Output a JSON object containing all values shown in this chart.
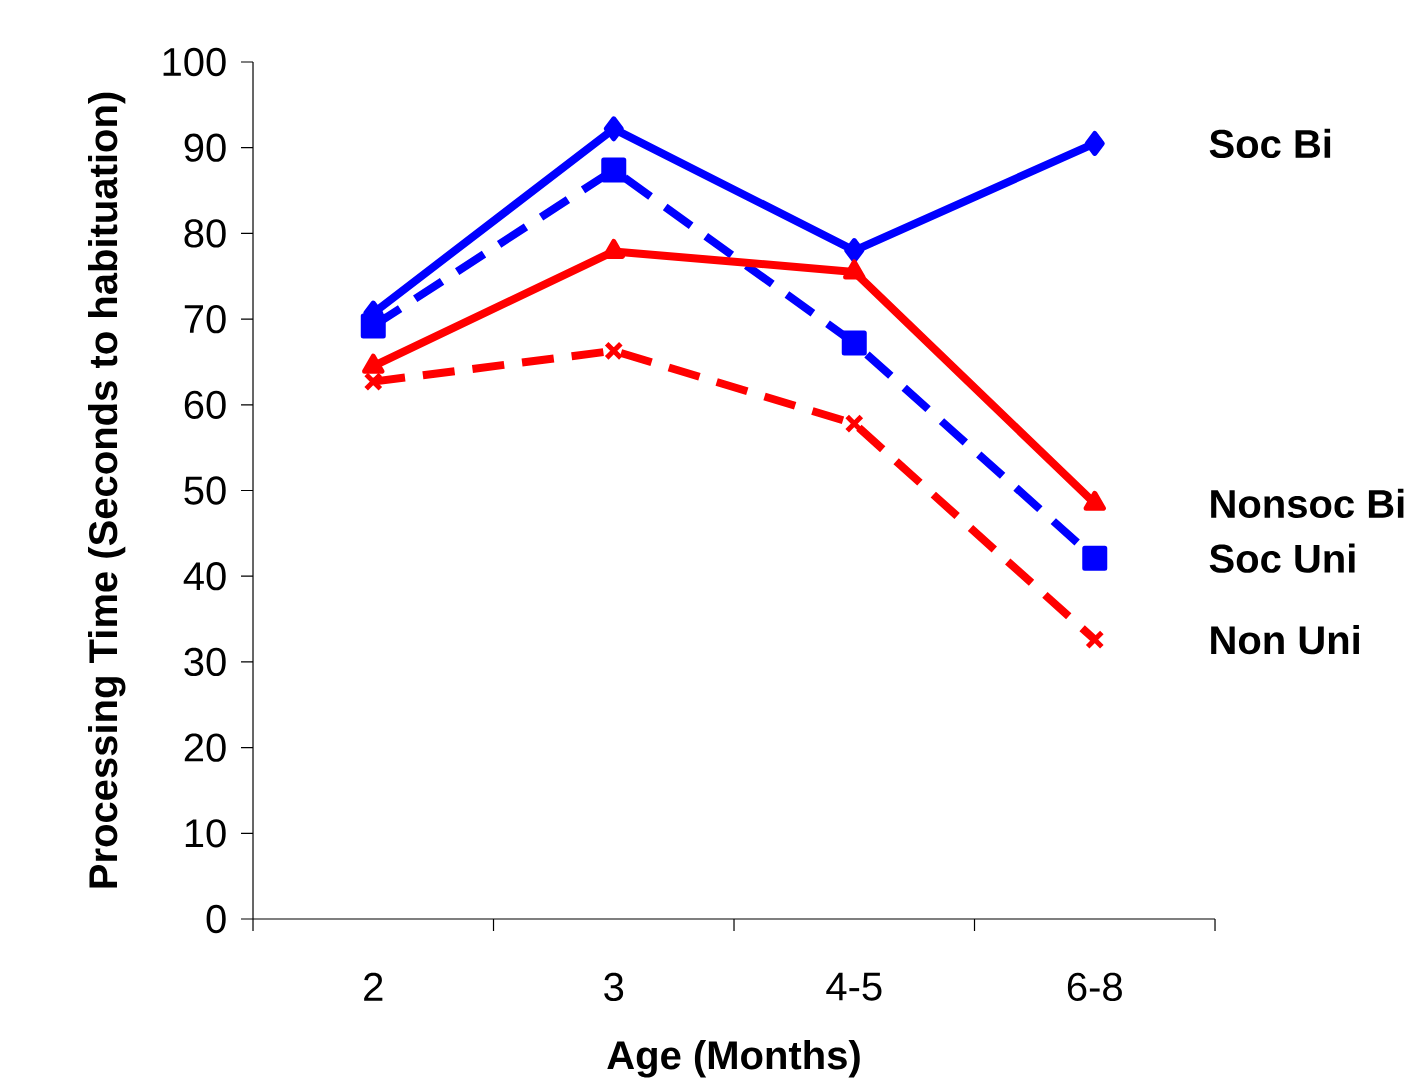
{
  "chart_data": {
    "type": "line",
    "xlabel": "Age (Months)",
    "ylabel": "Processing Time (Seconds to habituation)",
    "categories": [
      "2",
      "3",
      "4-5",
      "6-8"
    ],
    "ylim": [
      0,
      100
    ],
    "yticks": [
      0,
      10,
      20,
      30,
      40,
      50,
      60,
      70,
      80,
      90,
      100
    ],
    "series": [
      {
        "name": "Soc Bi",
        "color": "#0000ff",
        "marker": "diamond",
        "line_style": "solid",
        "values": [
          70.7,
          92.2,
          78.0,
          90.5
        ]
      },
      {
        "name": "Soc Uni",
        "color": "#0000ff",
        "marker": "square",
        "line_style": "dashed",
        "values": [
          69.2,
          87.4,
          67.2,
          42.1
        ]
      },
      {
        "name": "Nonsoc Bi",
        "color": "#ff0000",
        "marker": "triangle",
        "line_style": "solid",
        "values": [
          64.5,
          77.9,
          75.5,
          48.5
        ]
      },
      {
        "name": "Non Uni",
        "color": "#ff0000",
        "marker": "cross",
        "line_style": "dashed",
        "values": [
          62.7,
          66.3,
          57.8,
          32.6
        ]
      }
    ]
  }
}
